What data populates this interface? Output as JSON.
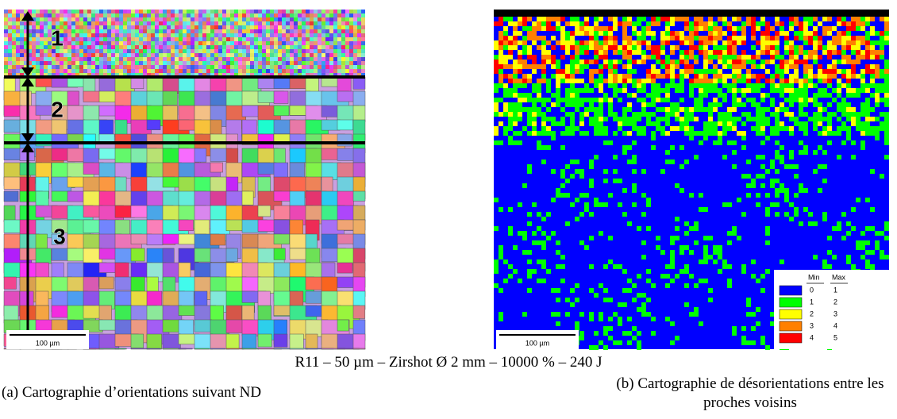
{
  "panel_a": {
    "zone_labels": [
      "1",
      "2",
      "3"
    ],
    "scale_bar": "100 µm"
  },
  "panel_b": {
    "scale_bar": "100 µm",
    "legend": {
      "min_header": "Min",
      "max_header": "Max",
      "rows": [
        {
          "color": "#0000ff",
          "min": 0,
          "max": 1
        },
        {
          "color": "#00ff00",
          "min": 1,
          "max": 2
        },
        {
          "color": "#ffff00",
          "min": 2,
          "max": 3
        },
        {
          "color": "#ff8000",
          "min": 3,
          "max": 4
        },
        {
          "color": "#ff0000",
          "min": 4,
          "max": 5
        }
      ]
    }
  },
  "caption": "R11 – 50 µm – Zirshot Ø 2 mm – 10000 % – 240 J",
  "subcaptions": {
    "a": "(a) Cartographie d’orientations suivant ND",
    "b": "(b) Cartographie de désorientations entre les proches voisins"
  }
}
